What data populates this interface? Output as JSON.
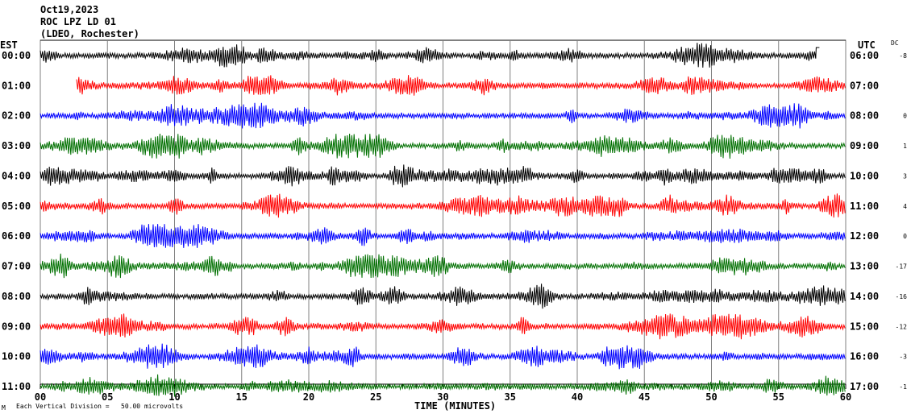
{
  "header": {
    "date": "Oct19,2023",
    "station": "ROC LPZ LD 01",
    "network": "(LDEO, Rochester)"
  },
  "left_axis_label": "EST",
  "right_axis_label": "UTC",
  "dc_label": "DC",
  "footer": {
    "scale_note": "Each Vertical Division =   50.00 microvolts",
    "corner_mark": "M"
  },
  "chart_data": {
    "type": "line",
    "title": "ROC LPZ LD 01",
    "xlabel": "TIME (MINUTES)",
    "xlim": [
      0,
      60
    ],
    "x_ticks": [
      "00",
      "05",
      "10",
      "15",
      "20",
      "25",
      "30",
      "35",
      "40",
      "45",
      "50",
      "55",
      "60"
    ],
    "grid": true,
    "trace_colors": [
      "#000000",
      "#ff0000",
      "#0000ff",
      "#007000"
    ],
    "rows": [
      {
        "est": "00:00",
        "utc": "06:00",
        "dc": "-8",
        "start_min": 0,
        "end_min": 57.8
      },
      {
        "est": "01:00",
        "utc": "07:00",
        "dc": "",
        "start_min": 2.7,
        "end_min": 60
      },
      {
        "est": "02:00",
        "utc": "08:00",
        "dc": "0",
        "start_min": 0,
        "end_min": 60
      },
      {
        "est": "03:00",
        "utc": "09:00",
        "dc": "1",
        "start_min": 0,
        "end_min": 60
      },
      {
        "est": "04:00",
        "utc": "10:00",
        "dc": "3",
        "start_min": 0,
        "end_min": 60
      },
      {
        "est": "05:00",
        "utc": "11:00",
        "dc": "4",
        "start_min": 0,
        "end_min": 60
      },
      {
        "est": "06:00",
        "utc": "12:00",
        "dc": "0",
        "start_min": 0,
        "end_min": 60
      },
      {
        "est": "07:00",
        "utc": "13:00",
        "dc": "-17",
        "start_min": 0,
        "end_min": 60
      },
      {
        "est": "08:00",
        "utc": "14:00",
        "dc": "-16",
        "start_min": 0,
        "end_min": 60
      },
      {
        "est": "09:00",
        "utc": "15:00",
        "dc": "-12",
        "start_min": 0,
        "end_min": 60
      },
      {
        "est": "10:00",
        "utc": "16:00",
        "dc": "-3",
        "start_min": 0,
        "end_min": 60
      },
      {
        "est": "11:00",
        "utc": "17:00",
        "dc": "-1",
        "start_min": 0,
        "end_min": 60
      }
    ]
  }
}
